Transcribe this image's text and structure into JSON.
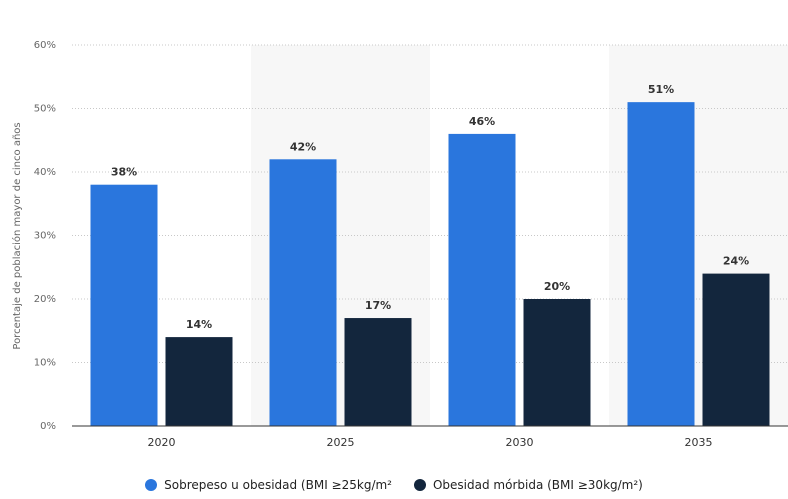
{
  "chart_data": {
    "type": "bar",
    "categories": [
      "2020",
      "2025",
      "2030",
      "2035"
    ],
    "series": [
      {
        "name": "Sobrepeso u obesidad (BMI ≥25kg/m²",
        "values": [
          38,
          42,
          46,
          51
        ],
        "labels": [
          "38%",
          "42%",
          "46%",
          "51%"
        ],
        "color": "#2a76dd"
      },
      {
        "name": "Obesidad mórbida (BMI ≥30kg/m²)",
        "values": [
          14,
          17,
          20,
          24
        ],
        "labels": [
          "14%",
          "17%",
          "20%",
          "24%"
        ],
        "color": "#13263d"
      }
    ],
    "ylabel": "Porcentaje de población mayor de cinco años",
    "ylim": [
      0,
      60
    ],
    "yticks": [
      0,
      10,
      20,
      30,
      40,
      50,
      60
    ],
    "ytick_labels": [
      "0%",
      "10%",
      "20%",
      "30%",
      "40%",
      "50%",
      "60%"
    ],
    "grid": true,
    "legend_position": "bottom"
  }
}
